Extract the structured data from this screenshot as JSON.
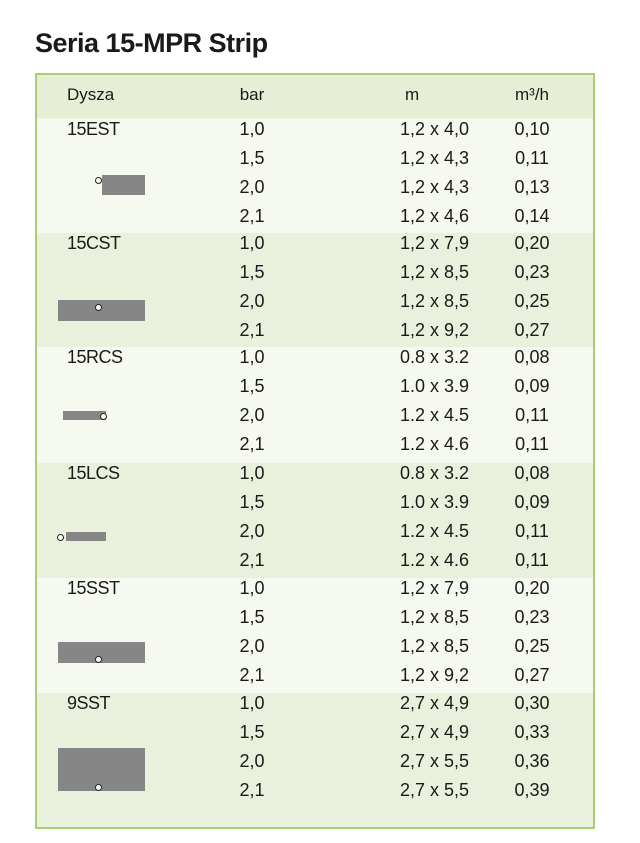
{
  "title": "Seria 15-MPR Strip",
  "header": {
    "dysza": "Dysza",
    "bar": "bar",
    "m": "m",
    "q": "m³/h"
  },
  "colors": {
    "border": "#a8cf73",
    "group_light": "#f6f9f0",
    "group_green": "#e9f1dc",
    "icon": "#868686"
  },
  "groups": [
    {
      "name": "15EST",
      "icon": "end-strip-icon",
      "rows": [
        [
          "1,0",
          "1,2 x 4,0",
          "0,10"
        ],
        [
          "1,5",
          "1,2 x 4,3",
          "0,11"
        ],
        [
          "2,0",
          "1,2 x 4,3",
          "0,13"
        ],
        [
          "2,1",
          "1,2 x 4,6",
          "0,14"
        ]
      ]
    },
    {
      "name": "15CST",
      "icon": "center-strip-icon",
      "rows": [
        [
          "1,0",
          "1,2 x 7,9",
          "0,20"
        ],
        [
          "1,5",
          "1,2 x 8,5",
          "0,23"
        ],
        [
          "2,0",
          "1,2 x 8,5",
          "0,25"
        ],
        [
          "2,1",
          "1,2 x 9,2",
          "0,27"
        ]
      ]
    },
    {
      "name": "15RCS",
      "icon": "right-corner-strip-icon",
      "rows": [
        [
          "1,0",
          "0.8 x 3.2",
          "0,08"
        ],
        [
          "1,5",
          "1.0 x 3.9",
          "0,09"
        ],
        [
          "2,0",
          "1.2 x 4.5",
          "0,11"
        ],
        [
          "2,1",
          "1.2 x 4.6",
          "0,11"
        ]
      ]
    },
    {
      "name": "15LCS",
      "icon": "left-corner-strip-icon",
      "rows": [
        [
          "1,0",
          "0.8 x 3.2",
          "0,08"
        ],
        [
          "1,5",
          "1.0 x 3.9",
          "0,09"
        ],
        [
          "2,0",
          "1.2 x 4.5",
          "0,11"
        ],
        [
          "2,1",
          "1.2 x 4.6",
          "0,11"
        ]
      ]
    },
    {
      "name": "15SST",
      "icon": "side-strip-icon",
      "rows": [
        [
          "1,0",
          "1,2 x 7,9",
          "0,20"
        ],
        [
          "1,5",
          "1,2 x 8,5",
          "0,23"
        ],
        [
          "2,0",
          "1,2 x 8,5",
          "0,25"
        ],
        [
          "2,1",
          "1,2 x 9,2",
          "0,27"
        ]
      ]
    },
    {
      "name": "9SST",
      "icon": "side-strip-9-icon",
      "rows": [
        [
          "1,0",
          "2,7 x 4,9",
          "0,30"
        ],
        [
          "1,5",
          "2,7 x 4,9",
          "0,33"
        ],
        [
          "2,0",
          "2,7 x 5,5",
          "0,36"
        ],
        [
          "2,1",
          "2,7 x 5,5",
          "0,39"
        ]
      ]
    }
  ]
}
